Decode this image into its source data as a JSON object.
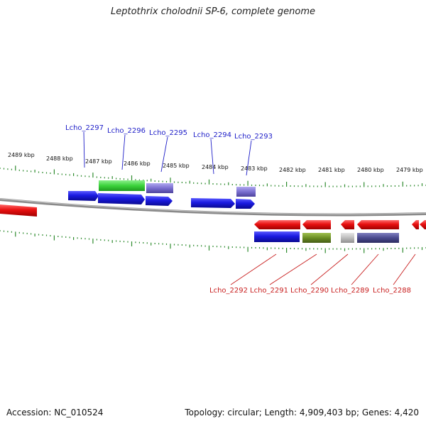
{
  "title": "Leptothrix cholodnii SP-6, complete genome",
  "footer": {
    "accession": "Accession: NC_010524",
    "summary": "Topology: circular; Length: 4,909,403 bp; Genes: 4,420"
  },
  "colors": {
    "forward_label": "#1e1ec8",
    "reverse_label": "#c81e1e",
    "tick": "#2e8b2e",
    "backbone": "#8a8a8a",
    "blue": "#1a1ae0",
    "red": "#e81010",
    "green": "#3cd23c",
    "purple": "#7a6fd0",
    "olive": "#6b8e23",
    "gray": "#bdbdbd",
    "darkpurple": "#4a4a8e"
  },
  "scale": {
    "kbp_labels": [
      "2489 kbp",
      "2488 kbp",
      "2487 kbp",
      "2486 kbp",
      "2485 kbp",
      "2484 kbp",
      "2483 kbp",
      "2482 kbp",
      "2481 kbp",
      "2480 kbp",
      "2479 kbp"
    ]
  },
  "genes_forward": [
    {
      "label": "Lcho_2297"
    },
    {
      "label": "Lcho_2296"
    },
    {
      "label": "Lcho_2295"
    },
    {
      "label": "Lcho_2294"
    },
    {
      "label": "Lcho_2293"
    }
  ],
  "genes_reverse": [
    {
      "label": "Lcho_2292"
    },
    {
      "label": "Lcho_2291"
    },
    {
      "label": "Lcho_2290"
    },
    {
      "label": "Lcho_2289"
    },
    {
      "label": "Lcho_2288"
    }
  ]
}
